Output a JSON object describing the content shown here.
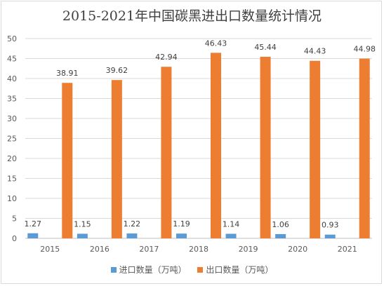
{
  "chart_data": {
    "type": "bar",
    "title": "2015-2021年中国碳黑进出口数量统计情况",
    "categories": [
      "2015",
      "2016",
      "2017",
      "2018",
      "2019",
      "2020",
      "2021"
    ],
    "series": [
      {
        "name": "进口数量（万吨）",
        "values": [
          1.27,
          1.15,
          1.22,
          1.19,
          1.14,
          1.06,
          0.93
        ],
        "color": "#5b9bd5"
      },
      {
        "name": "出口数量（万吨）",
        "values": [
          38.91,
          39.62,
          42.94,
          46.43,
          45.44,
          44.43,
          44.98
        ],
        "color": "#ed7d31"
      }
    ],
    "ylim": [
      0,
      50
    ],
    "yticks": [
      0,
      5,
      10,
      15,
      20,
      25,
      30,
      35,
      40,
      45,
      50
    ],
    "grid": true,
    "legend": "bottom"
  }
}
